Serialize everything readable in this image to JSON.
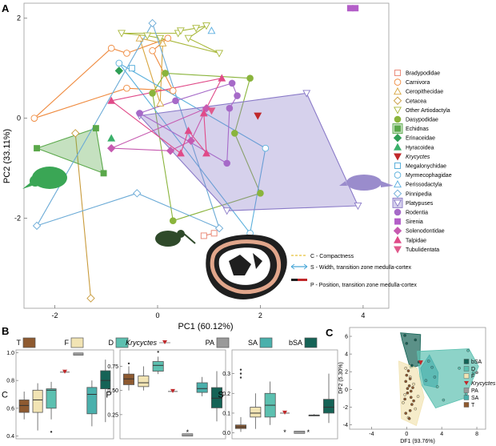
{
  "chart_data": [
    {
      "panel": "A",
      "type": "scatter",
      "xlabel": "PC1 (60.12%)",
      "ylabel": "PC2 (33.11%)",
      "xlim": [
        -2.6,
        4.5
      ],
      "ylim": [
        -3.8,
        2.3
      ],
      "xticks": [
        -2,
        0,
        2,
        4
      ],
      "yticks": [
        -2,
        0,
        2
      ],
      "xtick_labels": [
        "-2",
        "0",
        "2",
        "4"
      ],
      "ytick_labels": [
        "-2",
        "0",
        "2"
      ],
      "legend_position": "right",
      "groups": [
        {
          "name": "Bradypodidae",
          "color": "#e8816e",
          "marker": "square-open",
          "points": [
            [
              1.1,
              -2.3
            ],
            [
              0.9,
              -2.35
            ]
          ]
        },
        {
          "name": "Carnivora",
          "color": "#ef8a3e",
          "marker": "circle-open",
          "points": [
            [
              -2.4,
              0
            ],
            [
              -0.6,
              1.3
            ],
            [
              -0.9,
              1.4
            ],
            [
              -0.1,
              1.35
            ],
            [
              0.3,
              0.55
            ],
            [
              -0.6,
              0.6
            ],
            [
              0.2,
              1.6
            ]
          ]
        },
        {
          "name": "Ceropithecidae",
          "color": "#d8a640",
          "marker": "triangle-open",
          "points": [
            [
              -0.35,
              1.6
            ],
            [
              0.05,
              0.3
            ],
            [
              0.1,
              1.5
            ]
          ]
        },
        {
          "name": "Cetacea",
          "color": "#c89a3a",
          "marker": "diamond-open",
          "points": [
            [
              -1.6,
              -0.3
            ],
            [
              -1.3,
              -3.6
            ]
          ]
        },
        {
          "name": "Other Artiodactyla",
          "color": "#a8b83a",
          "marker": "triangle-down-open",
          "points": [
            [
              -0.7,
              1.7
            ],
            [
              -0.2,
              1.65
            ],
            [
              0.05,
              1.6
            ],
            [
              0.4,
              1.7
            ],
            [
              0.6,
              1.6
            ],
            [
              0.75,
              1.8
            ],
            [
              0.95,
              1.85
            ],
            [
              1.2,
              1.3
            ],
            [
              0.45,
              1.75
            ]
          ]
        },
        {
          "name": "Dasypodidae",
          "color": "#8ab43c",
          "marker": "circle",
          "points": [
            [
              0.15,
              0.9
            ],
            [
              -0.1,
              0.5
            ],
            [
              1.8,
              0.8
            ],
            [
              2.0,
              -1.5
            ],
            [
              0.3,
              -2.05
            ],
            [
              1.5,
              -0.3
            ]
          ]
        },
        {
          "name": "Echidnas",
          "color": "#5aa84a",
          "marker": "square",
          "points": [
            [
              -2.35,
              -0.6
            ],
            [
              -1.2,
              -0.2
            ],
            [
              -1.05,
              -1.1
            ]
          ]
        },
        {
          "name": "Erinaceidae",
          "color": "#2f9e55",
          "marker": "diamond",
          "points": [
            [
              -0.75,
              0.95
            ]
          ]
        },
        {
          "name": "Hyracoidea",
          "color": "#3ab06a",
          "marker": "triangle",
          "points": [
            [
              -0.9,
              -0.4
            ]
          ]
        },
        {
          "name": "Krycyctes",
          "color": "#c0282a",
          "marker": "triangle-down",
          "points": [
            [
              1.95,
              0.05
            ]
          ]
        },
        {
          "name": "Megalonychidae",
          "color": "#4aa8d8",
          "marker": "square-open",
          "points": [
            [
              -0.5,
              1.0
            ]
          ]
        },
        {
          "name": "Myrmecophagidae",
          "color": "#5ab0dc",
          "marker": "circle-open",
          "points": [
            [
              2.1,
              -0.6
            ],
            [
              1.8,
              -2.3
            ],
            [
              -0.75,
              1.1
            ]
          ]
        },
        {
          "name": "Perissodactyla",
          "color": "#5aaee0",
          "marker": "triangle-open",
          "points": [
            [
              1.05,
              1.75
            ]
          ]
        },
        {
          "name": "Pinnipedia",
          "color": "#6aaad6",
          "marker": "diamond-open",
          "points": [
            [
              -2.35,
              -2.15
            ],
            [
              -0.1,
              1.9
            ],
            [
              1.2,
              -2.2
            ],
            [
              -0.4,
              -1.5
            ]
          ]
        },
        {
          "name": "Platypuses",
          "color": "#8a7ac8",
          "marker": "triangle-down-open",
          "points": [
            [
              -0.35,
              0.05
            ],
            [
              3.9,
              -1.75
            ],
            [
              2.9,
              0.5
            ],
            [
              1.35,
              -1.85
            ]
          ]
        },
        {
          "name": "Rodentia",
          "color": "#a66ac8",
          "marker": "circle",
          "points": [
            [
              1.45,
              0.7
            ],
            [
              1.35,
              -0.9
            ],
            [
              1.55,
              0.45
            ],
            [
              0.35,
              0.35
            ],
            [
              1.4,
              0.2
            ],
            [
              -0.35,
              0.1
            ]
          ]
        },
        {
          "name": "Sirenia",
          "color": "#b35ec8",
          "marker": "square",
          "points": [
            [
              3.75,
              2.2
            ],
            [
              3.85,
              2.2
            ]
          ]
        },
        {
          "name": "Solenodontidae",
          "color": "#c65ab0",
          "marker": "diamond",
          "points": [
            [
              -0.9,
              -0.6
            ],
            [
              0.65,
              -0.45
            ],
            [
              0.95,
              0.2
            ],
            [
              0.25,
              -0.65
            ]
          ]
        },
        {
          "name": "Talpidae",
          "color": "#e04a88",
          "marker": "triangle",
          "points": [
            [
              -0.9,
              0.35
            ],
            [
              1.25,
              0.8
            ],
            [
              0.9,
              0.1
            ],
            [
              0.6,
              -0.25
            ],
            [
              0.45,
              -0.7
            ],
            [
              0.95,
              -0.7
            ]
          ]
        },
        {
          "name": "Tubulidentata",
          "color": "#e05a8c",
          "marker": "triangle-down",
          "points": [
            [
              1.05,
              0.15
            ]
          ]
        }
      ],
      "legend_entries": [
        "Bradypodidae",
        "Carnivora",
        "Ceropithecidae",
        "Cetacea",
        "Other Artiodactyla",
        "Dasypodidae",
        "Echidnas",
        "Erinaceidae",
        "Hyracoidea",
        "Krycyctes",
        "Megalonychidae",
        "Myrmecophagidae",
        "Perissodactyla",
        "Pinnipedia",
        "Platypuses",
        "Rodentia",
        "Sirenia",
        "Solenodontidae",
        "Talpidae",
        "Tubulidentata"
      ],
      "inset_legend": [
        "C - Compactness",
        "S - Width, transition zone medulla-cortex",
        "P - Position, transition zone medulla-cortex"
      ]
    },
    {
      "panel": "B",
      "type": "box",
      "legend": [
        {
          "name": "T",
          "color": "#8e5a30"
        },
        {
          "name": "F",
          "color": "#f2e4b4"
        },
        {
          "name": "D",
          "color": "#5cc0b0"
        },
        {
          "name": "Krycyctes",
          "color": "#c0282a"
        },
        {
          "name": "PA",
          "color": "#9a9a9a"
        },
        {
          "name": "SA",
          "color": "#4ab0ac"
        },
        {
          "name": "bSA",
          "color": "#156356"
        }
      ],
      "subplots": [
        {
          "ylabel": "C",
          "ylim": [
            0.38,
            1.02
          ],
          "yticks": [
            0.4,
            0.6,
            0.8,
            1.0
          ],
          "ytick_labels": [
            "0.4",
            "0.6",
            "0.8",
            "1.0"
          ],
          "boxes": {
            "T": {
              "min": 0.52,
              "q1": 0.57,
              "median": 0.62,
              "q3": 0.66,
              "max": 0.72
            },
            "F": {
              "min": 0.44,
              "q1": 0.57,
              "median": 0.66,
              "q3": 0.73,
              "max": 0.78
            },
            "D": {
              "min": 0.52,
              "q1": 0.6,
              "median": 0.73,
              "q3": 0.74,
              "max": 0.79,
              "outliers": [
                0.43
              ]
            },
            "Krycyctes": {
              "value": 0.86
            },
            "PA": {
              "value": 0.99
            },
            "SA": {
              "min": 0.47,
              "q1": 0.56,
              "median": 0.7,
              "q3": 0.75,
              "max": 0.8
            },
            "bSA": {
              "min": 0.5,
              "q1": 0.74,
              "median": 0.8,
              "q3": 0.87,
              "max": 0.95
            }
          }
        },
        {
          "ylabel": "P",
          "ylim": [
            0.0,
            0.92
          ],
          "yticks": [
            0.25,
            0.5,
            0.75
          ],
          "ytick_labels": [
            "0.25",
            "0.50",
            "0.75"
          ],
          "boxes": {
            "T": {
              "min": 0.5,
              "q1": 0.56,
              "median": 0.62,
              "q3": 0.67,
              "max": 0.75,
              "outliers": [
                0.78
              ]
            },
            "F": {
              "min": 0.5,
              "q1": 0.54,
              "median": 0.58,
              "q3": 0.65,
              "max": 0.75
            },
            "D": {
              "min": 0.67,
              "q1": 0.7,
              "median": 0.76,
              "q3": 0.8,
              "max": 0.85,
              "outliers": [
                0.9
              ]
            },
            "Krycyctes": {
              "value": 0.49
            },
            "PA": {
              "value": 0.04
            },
            "SA": {
              "min": 0.44,
              "q1": 0.48,
              "median": 0.52,
              "q3": 0.58,
              "max": 0.64
            },
            "bSA": {
              "min": 0.18,
              "q1": 0.32,
              "median": 0.42,
              "q3": 0.53,
              "max": 0.7
            }
          },
          "annotations": [
            "*"
          ]
        },
        {
          "ylabel": "S",
          "ylim": [
            -0.03,
            0.42
          ],
          "yticks": [
            0.0,
            0.1,
            0.2,
            0.3
          ],
          "ytick_labels": [
            "0.0",
            "0.1",
            "0.2",
            "0.3"
          ],
          "boxes": {
            "T": {
              "min": 0.005,
              "q1": 0.022,
              "median": 0.03,
              "q3": 0.04,
              "max": 0.08,
              "outliers": [
                0.28,
                0.3,
                0.32
              ]
            },
            "F": {
              "min": 0.02,
              "q1": 0.08,
              "median": 0.1,
              "q3": 0.13,
              "max": 0.2
            },
            "D": {
              "min": 0.04,
              "q1": 0.08,
              "median": 0.14,
              "q3": 0.2,
              "max": 0.26
            },
            "Krycyctes": {
              "value": 0.1
            },
            "PA": {
              "value": 0.003
            },
            "SA": {
              "min": 0.085,
              "q1": 0.087,
              "median": 0.09,
              "q3": 0.09,
              "max": 0.095
            },
            "bSA": {
              "min": 0.05,
              "q1": 0.1,
              "median": 0.13,
              "q3": 0.17,
              "max": 0.3
            }
          },
          "annotations": [
            "*",
            "*"
          ]
        }
      ]
    },
    {
      "panel": "C",
      "type": "scatter",
      "xlabel": "DF1 (93.76%)",
      "ylabel": "DF2 (5.30%)",
      "xlim": [
        -6.5,
        9
      ],
      "ylim": [
        -4.5,
        7
      ],
      "xticks": [
        -4,
        0,
        4,
        8
      ],
      "yticks": [
        -4,
        -2,
        0,
        2,
        4,
        6
      ],
      "legend": [
        {
          "name": "bSA",
          "color": "#156356"
        },
        {
          "name": "D",
          "color": "#5cc0b0"
        },
        {
          "name": "F",
          "color": "#f2e4b4"
        },
        {
          "name": "Krycyctes",
          "color": "#c0282a"
        },
        {
          "name": "PA",
          "color": "#9a9a9a"
        },
        {
          "name": "SA",
          "color": "#4ab0ac"
        },
        {
          "name": "T",
          "color": "#8e5a30"
        }
      ],
      "groups": [
        {
          "name": "bSA",
          "hull": [
            [
              -0.7,
              6.4
            ],
            [
              1.6,
              6.2
            ],
            [
              1.5,
              2.7
            ],
            [
              0.4,
              2.4
            ],
            [
              -0.5,
              5.5
            ]
          ],
          "points": [
            [
              -0.2,
              6.1
            ],
            [
              1.0,
              5.6
            ],
            [
              1.4,
              3.1
            ],
            [
              0.6,
              2.7
            ],
            [
              0.0,
              5.2
            ]
          ]
        },
        {
          "name": "D",
          "hull": [
            [
              1.2,
              4.3
            ],
            [
              7.1,
              4.6
            ],
            [
              8.2,
              2.6
            ],
            [
              6.6,
              -1.0
            ],
            [
              3.3,
              -2.1
            ],
            [
              1.6,
              0.7
            ]
          ],
          "points": [
            [
              7.0,
              4.4
            ],
            [
              6.0,
              2.4
            ],
            [
              6.8,
              -0.5
            ],
            [
              4.2,
              -1.2
            ],
            [
              3.5,
              0.3
            ],
            [
              7.6,
              1.9
            ]
          ]
        },
        {
          "name": "F",
          "hull": [
            [
              -0.9,
              3.2
            ],
            [
              1.2,
              2.4
            ],
            [
              2.0,
              -0.9
            ],
            [
              1.1,
              -4.1
            ],
            [
              -0.6,
              -3.3
            ]
          ],
          "points": [
            [
              0.4,
              1.4
            ],
            [
              -0.2,
              -0.6
            ],
            [
              1.0,
              -2.2
            ],
            [
              0.2,
              -3.2
            ],
            [
              -0.4,
              -1.5
            ],
            [
              0.8,
              0.6
            ],
            [
              -0.1,
              2.4
            ],
            [
              1.3,
              -0.8
            ]
          ]
        },
        {
          "name": "Krycyctes",
          "points": [
            [
              1.6,
              3.0
            ]
          ]
        },
        {
          "name": "PA",
          "points": [
            [
              8.0,
              1.9
            ]
          ]
        },
        {
          "name": "SA",
          "hull": [
            [
              2.6,
              3.9
            ],
            [
              3.6,
              1.9
            ],
            [
              3.5,
              0.2
            ],
            [
              2.0,
              0.5
            ],
            [
              1.6,
              2.4
            ]
          ],
          "points": [
            [
              2.5,
              3.2
            ],
            [
              3.2,
              1.4
            ],
            [
              2.2,
              1.0
            ],
            [
              2.9,
              2.5
            ]
          ]
        },
        {
          "name": "T",
          "points": [
            [
              0.1,
              -0.4
            ],
            [
              0.3,
              0.4
            ],
            [
              0.5,
              -0.9
            ],
            [
              -0.1,
              0.9
            ],
            [
              0.6,
              -1.7
            ],
            [
              0.0,
              1.6
            ],
            [
              0.4,
              -2.4
            ],
            [
              -0.2,
              -1.1
            ],
            [
              0.7,
              0.2
            ],
            [
              0.2,
              2.1
            ],
            [
              0.5,
              -0.2
            ],
            [
              -0.1,
              -2.7
            ],
            [
              0.3,
              -3.3
            ],
            [
              0.8,
              -1.3
            ],
            [
              0.1,
              0.1
            ],
            [
              0.4,
              1.2
            ]
          ]
        }
      ]
    }
  ]
}
